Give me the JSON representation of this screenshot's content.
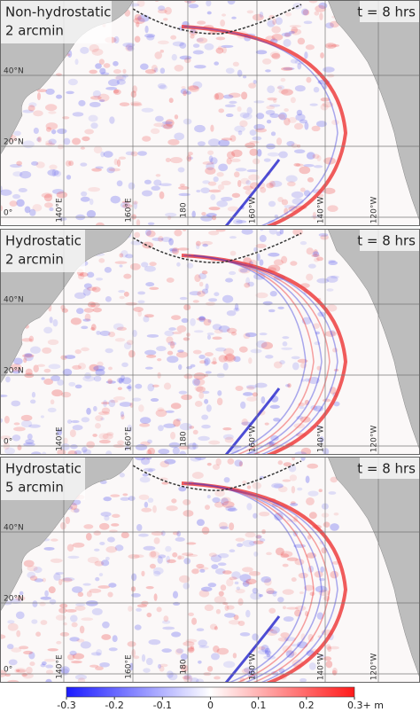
{
  "panels": [
    {
      "label": [
        "Non-hydrostatic",
        "2 arcmin"
      ],
      "time": "t = 8 hrs"
    },
    {
      "label": [
        "Hydrostatic",
        "2 arcmin"
      ],
      "time": "t = 8 hrs"
    },
    {
      "label": [
        "Hydrostatic",
        "5 arcmin"
      ],
      "time": "t = 8 hrs"
    }
  ],
  "lat_labels": [
    "40°N",
    "20°N",
    "0°"
  ],
  "lon_labels": [
    "140°E",
    "160°E",
    "180",
    "160°W",
    "140°W",
    "120°W"
  ],
  "colorbar": {
    "range": [
      -0.3,
      0.3
    ],
    "ticks": [
      -0.3,
      -0.2,
      -0.1,
      0,
      0.1,
      0.2,
      {
        "value": 0.3,
        "label": "0.3+ m"
      }
    ]
  }
}
